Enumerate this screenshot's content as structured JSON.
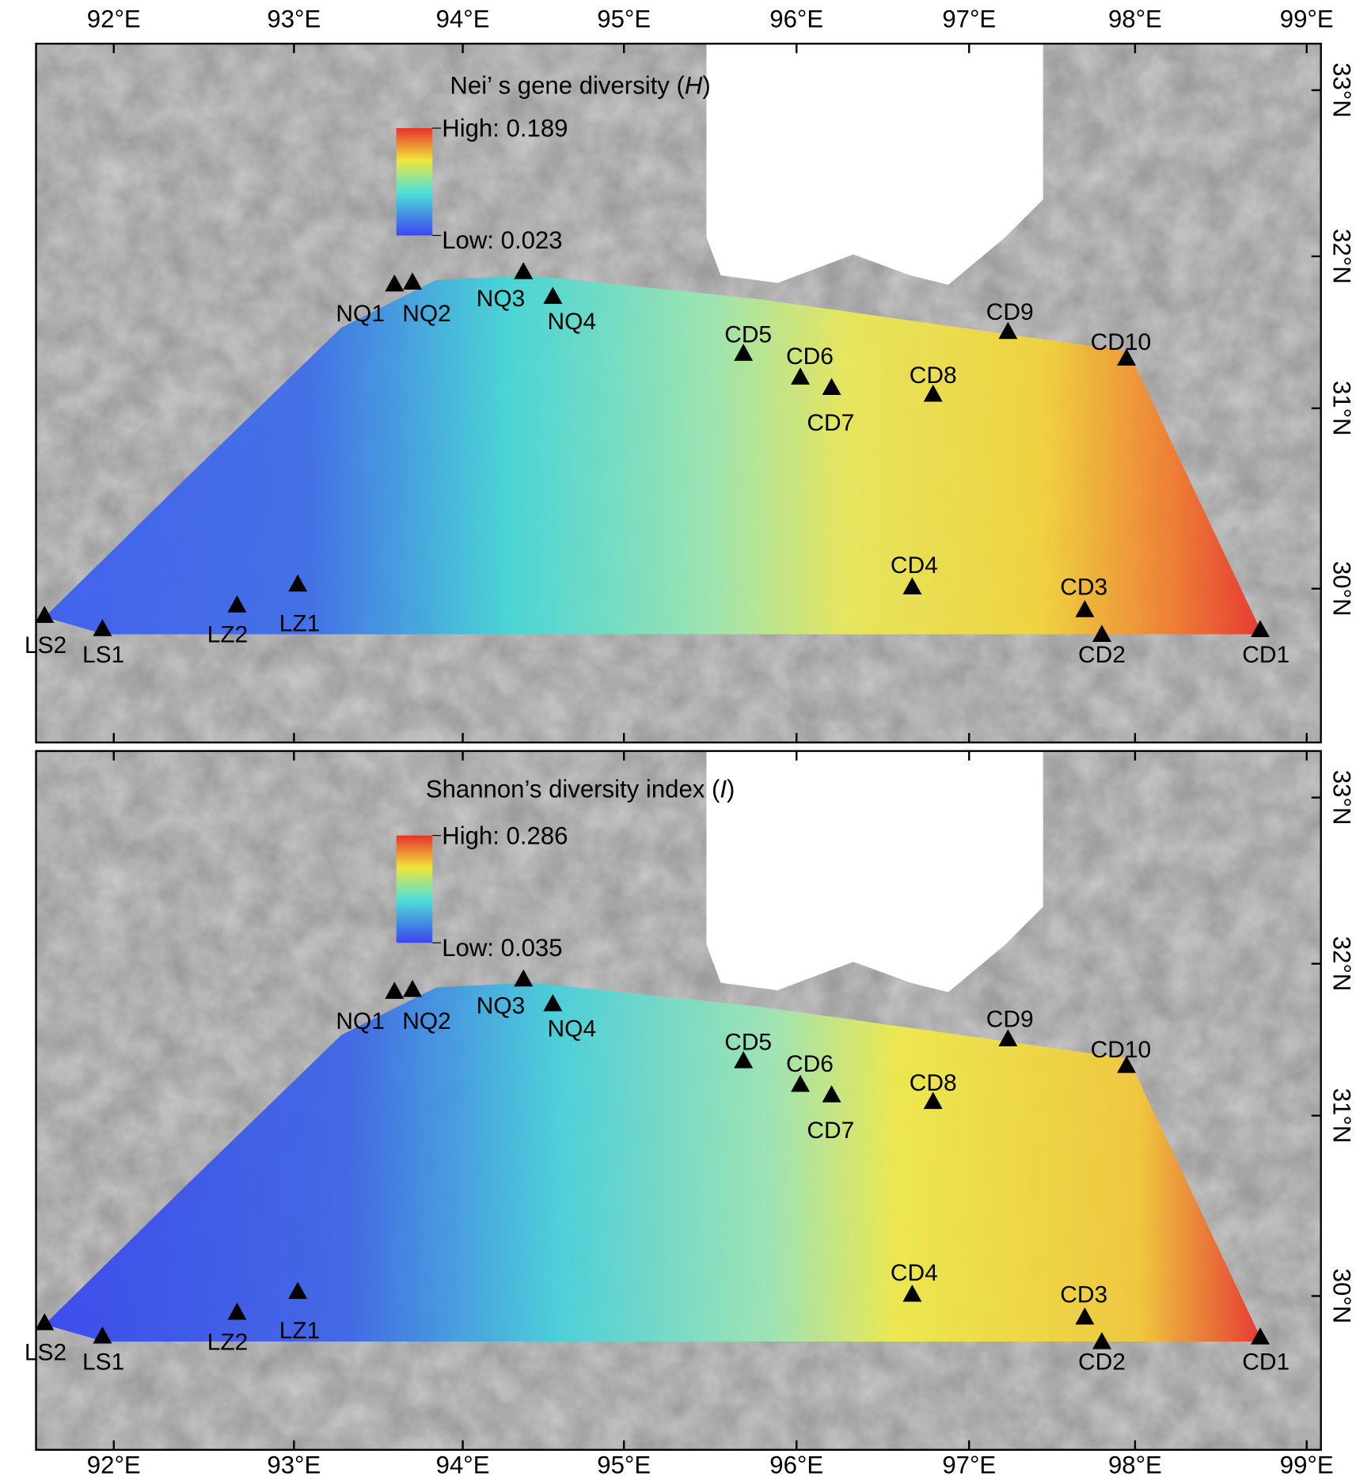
{
  "panels": [
    {
      "title_prefix": "Nei’ s gene diversity (",
      "title_var": "H",
      "title_suffix": ")",
      "legend_high": "High: 0.189",
      "legend_low": "Low: 0.023",
      "sites": [
        "NQ1",
        "NQ2",
        "NQ3",
        "NQ4",
        "CD5",
        "CD6",
        "CD7",
        "CD8",
        "CD9",
        "CD10",
        "CD4",
        "CD3",
        "CD2",
        "CD1",
        "LZ1",
        "LZ2",
        "LS2",
        "LS1"
      ]
    },
    {
      "title_prefix": "Shannon’s diversity index (",
      "title_var": "I",
      "title_suffix": ")",
      "legend_high": "High: 0.286",
      "legend_low": "Low: 0.035",
      "sites": [
        "NQ1",
        "NQ2",
        "NQ3",
        "NQ4",
        "CD5",
        "CD6",
        "CD7",
        "CD8",
        "CD9",
        "CD10",
        "CD4",
        "CD3",
        "CD2",
        "CD1",
        "LZ1",
        "LZ2",
        "LS2",
        "LS1"
      ]
    }
  ],
  "lon_labels": [
    "92°E",
    "93°E",
    "94°E",
    "95°E",
    "96°E",
    "97°E",
    "98°E",
    "99°E"
  ],
  "lat_labels": [
    "33°N",
    "32°N",
    "31°N",
    "30°N"
  ]
}
